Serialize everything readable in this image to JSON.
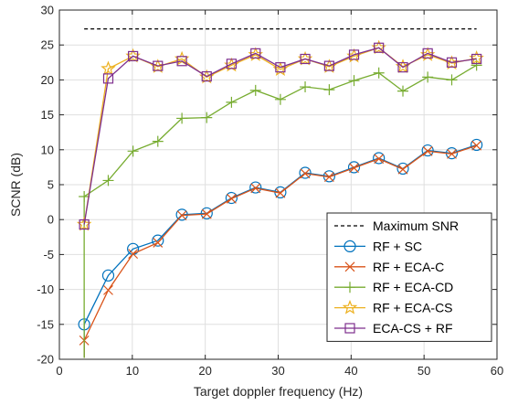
{
  "chart_data": {
    "type": "line",
    "title": "",
    "xlabel": "Target doppler frequency (Hz)",
    "ylabel": "SCNR (dB)",
    "xlim": [
      0,
      60
    ],
    "ylim": [
      -20,
      30
    ],
    "xticks": [
      0,
      10,
      20,
      30,
      40,
      50,
      60
    ],
    "yticks": [
      -20,
      -15,
      -10,
      -5,
      0,
      5,
      10,
      15,
      20,
      25,
      30
    ],
    "grid": true,
    "legend_position": "bottom-right",
    "x": [
      3.4,
      6.7,
      10.1,
      13.5,
      16.8,
      20.2,
      23.6,
      26.9,
      30.3,
      33.7,
      37.0,
      40.4,
      43.8,
      47.1,
      50.5,
      53.8,
      57.2
    ],
    "reference_line": {
      "name": "Maximum SNR",
      "value": 27.3,
      "color": "#000000",
      "style": "dashed"
    },
    "series": [
      {
        "name": "RF + SC",
        "color": "#0072BD",
        "marker": "circle",
        "values": [
          -15.0,
          -8.0,
          -4.2,
          -3.0,
          0.7,
          0.9,
          3.1,
          4.6,
          3.9,
          6.7,
          6.2,
          7.5,
          8.8,
          7.3,
          9.9,
          9.5,
          10.7
        ]
      },
      {
        "name": "RF + ECA-C",
        "color": "#D95319",
        "marker": "x",
        "values": [
          -17.3,
          -10.1,
          -4.9,
          -3.3,
          0.6,
          0.8,
          3.0,
          4.5,
          3.8,
          6.6,
          6.1,
          7.4,
          8.7,
          7.2,
          9.8,
          9.4,
          10.6
        ]
      },
      {
        "name": "RF + ECA-CD",
        "color": "#77AC30",
        "marker": "plus",
        "values": [
          3.3,
          5.6,
          9.8,
          11.2,
          14.5,
          14.6,
          16.8,
          18.5,
          17.2,
          19.0,
          18.6,
          19.9,
          21.0,
          18.4,
          20.4,
          20.0,
          22.1
        ]
      },
      {
        "name": "RF + ECA-CS",
        "color": "#EDB120",
        "marker": "star",
        "values": [
          -0.7,
          21.6,
          23.4,
          21.9,
          23.0,
          20.4,
          22.1,
          23.6,
          21.5,
          23.0,
          21.9,
          23.4,
          24.6,
          21.9,
          23.6,
          22.4,
          23.1
        ]
      },
      {
        "name": "ECA-CS + RF",
        "color": "#7E2F8E",
        "marker": "square",
        "values": [
          -0.7,
          20.2,
          23.4,
          22.0,
          22.7,
          20.5,
          22.3,
          23.8,
          21.8,
          23.0,
          22.0,
          23.6,
          24.6,
          21.8,
          23.8,
          22.5,
          23.0
        ]
      }
    ],
    "series_start_values": [
      -19.8,
      -19.8,
      -19.8,
      -0.7,
      -0.7
    ]
  }
}
